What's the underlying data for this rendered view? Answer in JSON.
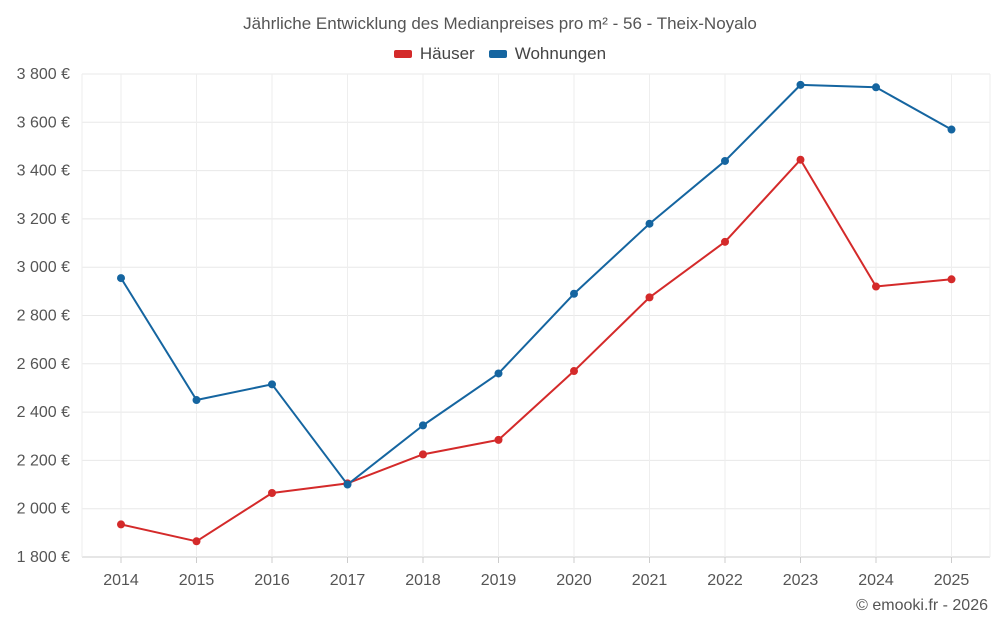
{
  "chart_data": {
    "type": "line",
    "title": "Jährliche Entwicklung des Medianpreises pro m² - 56 - Theix-Noyalo",
    "categories": [
      "2014",
      "2015",
      "2016",
      "2017",
      "2018",
      "2019",
      "2020",
      "2021",
      "2022",
      "2023",
      "2024",
      "2025"
    ],
    "series": [
      {
        "name": "Häuser",
        "color": "#d42a2a",
        "values": [
          1935,
          1865,
          2065,
          2105,
          2225,
          2285,
          2570,
          2875,
          3105,
          3445,
          2920,
          2950
        ]
      },
      {
        "name": "Wohnungen",
        "color": "#1565a0",
        "values": [
          2955,
          2450,
          2515,
          2100,
          2345,
          2560,
          2890,
          3180,
          3440,
          3755,
          3745,
          3570
        ]
      }
    ],
    "yticks": [
      1800,
      2000,
      2200,
      2400,
      2600,
      2800,
      3000,
      3200,
      3400,
      3600,
      3800
    ],
    "ytick_labels": [
      "1 800 €",
      "2 000 €",
      "2 200 €",
      "2 400 €",
      "2 600 €",
      "2 800 €",
      "3 000 €",
      "3 200 €",
      "3 400 €",
      "3 600 €",
      "3 800 €"
    ],
    "ylim": [
      1800,
      3800
    ],
    "xlabel": "",
    "ylabel": "",
    "grid": true,
    "legend_position": "top-center"
  },
  "copyright": "© emooki.fr - 2026"
}
